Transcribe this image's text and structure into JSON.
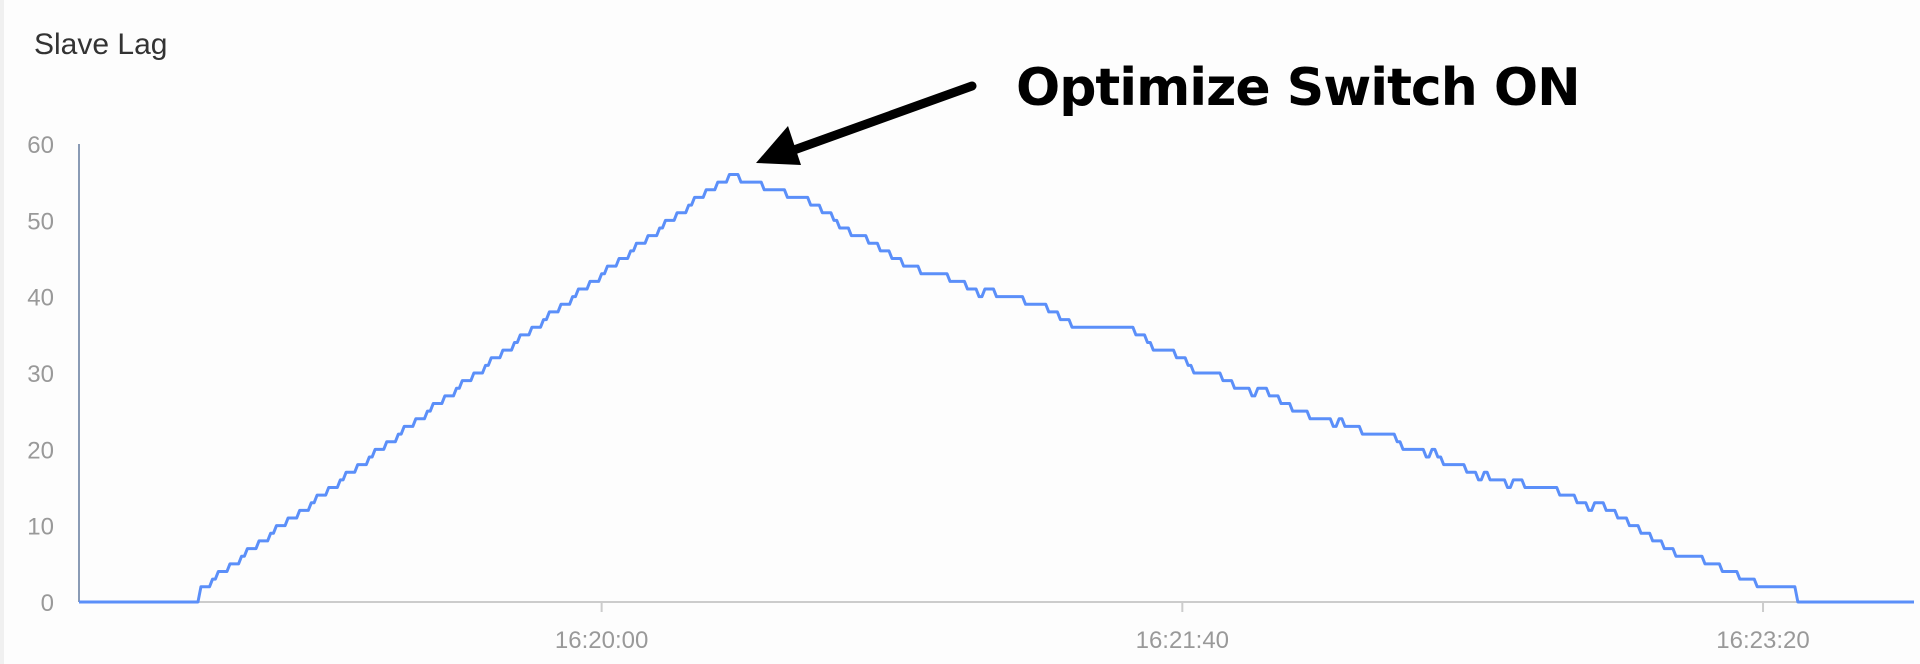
{
  "chart_data": {
    "type": "line",
    "title": "Slave Lag",
    "xlabel": "",
    "ylabel": "",
    "xlim": [
      "16:18:30",
      "16:23:46"
    ],
    "ylim": [
      0,
      60
    ],
    "yticks": [
      "0",
      "10",
      "20",
      "30",
      "40",
      "50",
      "60"
    ],
    "xticks": [
      "16:20:00",
      "16:21:40",
      "16:23:20"
    ],
    "grid": false,
    "line_color": "#5b8ff9",
    "step": true,
    "annotation": {
      "text": "Optimize Switch ON",
      "points_to": [
        "16:20:22",
        56
      ],
      "arrow": "black"
    },
    "series": [
      {
        "x": [
          "16:18:30",
          "16:18:50",
          "16:18:51",
          "16:18:53",
          "16:18:54",
          "16:18:56",
          "16:18:58",
          "16:18:59",
          "16:19:01",
          "16:19:03",
          "16:19:04",
          "16:19:06",
          "16:19:08",
          "16:19:10",
          "16:19:11",
          "16:19:13",
          "16:19:15",
          "16:19:16",
          "16:19:18",
          "16:19:20",
          "16:19:21",
          "16:19:23",
          "16:19:25",
          "16:19:26",
          "16:19:28",
          "16:19:30",
          "16:19:31",
          "16:19:33",
          "16:19:35",
          "16:19:36",
          "16:19:38",
          "16:19:40",
          "16:19:41",
          "16:19:43",
          "16:19:45",
          "16:19:46",
          "16:19:48",
          "16:19:50",
          "16:19:51",
          "16:19:53",
          "16:19:55",
          "16:19:56",
          "16:19:58",
          "16:20:00",
          "16:20:01",
          "16:20:03",
          "16:20:05",
          "16:20:06",
          "16:20:08",
          "16:20:10",
          "16:20:11",
          "16:20:13",
          "16:20:15",
          "16:20:16",
          "16:20:18",
          "16:20:20",
          "16:20:22",
          "16:20:24",
          "16:20:28",
          "16:20:32",
          "16:20:36",
          "16:20:38",
          "16:20:40",
          "16:20:41",
          "16:20:43",
          "16:20:46",
          "16:20:48",
          "16:20:50",
          "16:20:52",
          "16:20:55",
          "16:21:00",
          "16:21:03",
          "16:21:05",
          "16:21:06",
          "16:21:08",
          "16:21:13",
          "16:21:17",
          "16:21:19",
          "16:21:21",
          "16:21:32",
          "16:21:34",
          "16:21:35",
          "16:21:39",
          "16:21:41",
          "16:21:42",
          "16:21:47",
          "16:21:49",
          "16:21:52",
          "16:21:53",
          "16:21:55",
          "16:21:57",
          "16:21:59",
          "16:22:02",
          "16:22:06",
          "16:22:07",
          "16:22:08",
          "16:22:11",
          "16:22:17",
          "16:22:18",
          "16:22:22",
          "16:22:23",
          "16:22:24",
          "16:22:25",
          "16:22:29",
          "16:22:31",
          "16:22:32",
          "16:22:33",
          "16:22:36",
          "16:22:37",
          "16:22:39",
          "16:22:45",
          "16:22:48",
          "16:22:50",
          "16:22:51",
          "16:22:53",
          "16:22:55",
          "16:22:57",
          "16:22:59",
          "16:23:01",
          "16:23:03",
          "16:23:05",
          "16:23:10",
          "16:23:13",
          "16:23:16",
          "16:23:19",
          "16:23:26",
          "16:23:46"
        ],
        "y": [
          0,
          0,
          2,
          3,
          4,
          5,
          6,
          7,
          8,
          9,
          10,
          11,
          12,
          13,
          14,
          15,
          16,
          17,
          18,
          19,
          20,
          21,
          22,
          23,
          24,
          25,
          26,
          27,
          28,
          29,
          30,
          31,
          32,
          33,
          34,
          35,
          36,
          37,
          38,
          39,
          40,
          41,
          42,
          43,
          44,
          45,
          46,
          47,
          48,
          49,
          50,
          51,
          52,
          53,
          54,
          55,
          56,
          55,
          54,
          53,
          52,
          51,
          50,
          49,
          48,
          47,
          46,
          45,
          44,
          43,
          42,
          41,
          40,
          41,
          40,
          39,
          38,
          37,
          36,
          35,
          34,
          33,
          32,
          31,
          30,
          29,
          28,
          27,
          28,
          27,
          26,
          25,
          24,
          23,
          24,
          23,
          22,
          21,
          20,
          19,
          20,
          19,
          18,
          17,
          16,
          17,
          16,
          15,
          16,
          15,
          14,
          13,
          12,
          13,
          12,
          11,
          10,
          9,
          8,
          7,
          6,
          5,
          4,
          3,
          2,
          0,
          0
        ]
      }
    ]
  }
}
